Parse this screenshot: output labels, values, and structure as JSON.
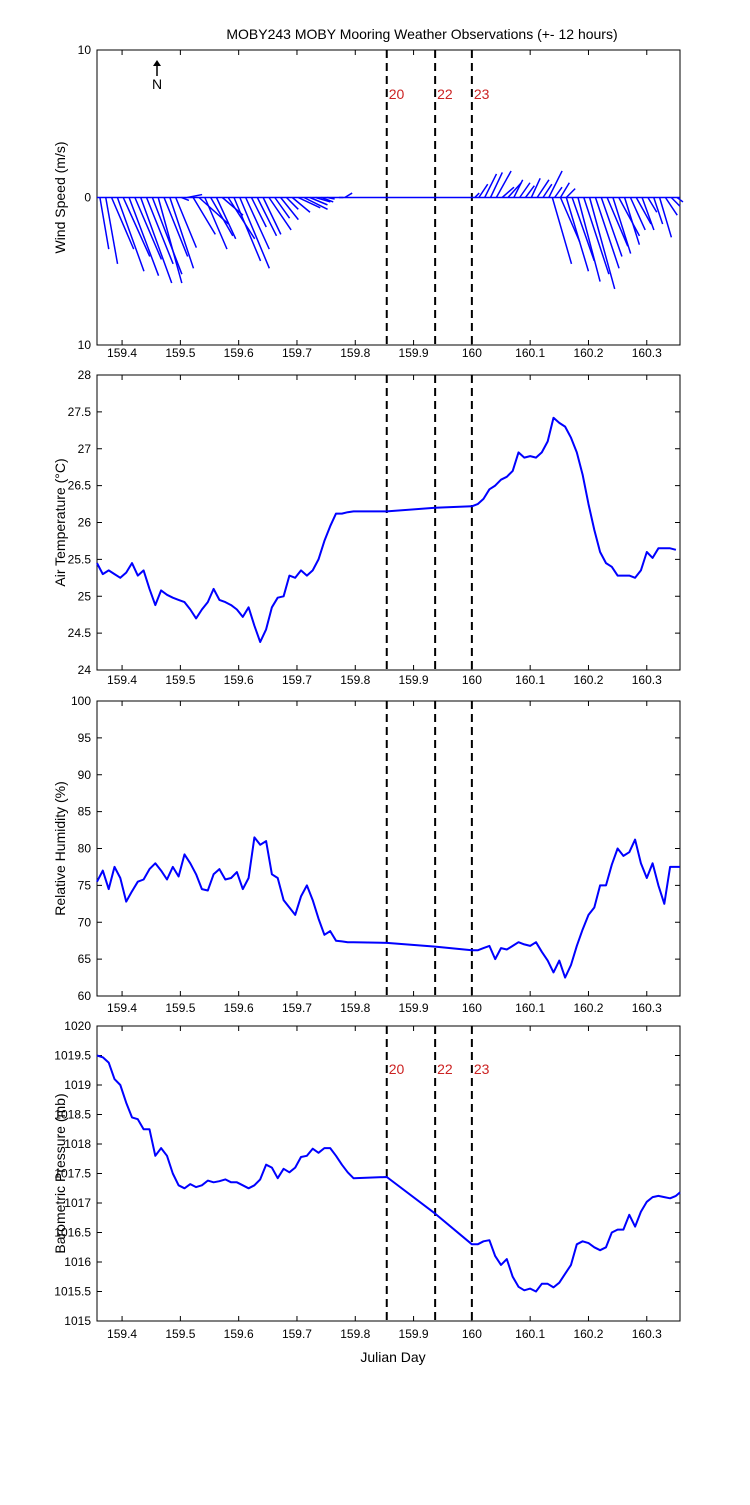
{
  "figure": {
    "title": "MOBY243 MOBY Mooring Weather Observations (+- 12 hours)",
    "xlabel": "Julian Day",
    "north_label": "N"
  },
  "colors": {
    "line": "#0000ff",
    "marker_label": "#cc2222",
    "axis": "#000000",
    "background": "#ffffff"
  },
  "chart_data": [
    {
      "type": "quiver",
      "id": "wind",
      "ylabel": "Wind Speed (m/s)",
      "xlim": [
        159.357,
        160.357
      ],
      "ylim": [
        -10,
        10
      ],
      "yticklabels": [
        {
          "v": 10,
          "t": "10"
        },
        {
          "v": 0,
          "t": "0"
        },
        {
          "v": -10,
          "t": "10"
        }
      ],
      "xticks": [
        159.4,
        159.5,
        159.6,
        159.7,
        159.8,
        159.9,
        160,
        160.1,
        160.2,
        160.3
      ],
      "vlines": [
        159.854,
        159.937,
        160.0
      ],
      "marker_labels": [
        "20",
        "22",
        "23"
      ],
      "vectors": [
        {
          "x": 159.362,
          "u": 0.6,
          "v": -3.5
        },
        {
          "x": 159.372,
          "u": 0.8,
          "v": -4.5
        },
        {
          "x": 159.382,
          "u": 1.5,
          "v": -3.5
        },
        {
          "x": 159.392,
          "u": 1.8,
          "v": -5.0
        },
        {
          "x": 159.402,
          "u": 1.8,
          "v": -4.0
        },
        {
          "x": 159.412,
          "u": 2.0,
          "v": -5.3
        },
        {
          "x": 159.422,
          "u": 1.8,
          "v": -4.2
        },
        {
          "x": 159.432,
          "u": 2.1,
          "v": -5.8
        },
        {
          "x": 159.442,
          "u": 1.8,
          "v": -4.5
        },
        {
          "x": 159.452,
          "u": 2.0,
          "v": -5.2
        },
        {
          "x": 159.462,
          "u": 1.6,
          "v": -5.8
        },
        {
          "x": 159.472,
          "u": 1.6,
          "v": -4.0
        },
        {
          "x": 159.482,
          "u": 1.6,
          "v": -4.8
        },
        {
          "x": 159.492,
          "u": 1.4,
          "v": -3.4
        },
        {
          "x": 159.502,
          "u": 0.5,
          "v": -0.2
        },
        {
          "x": 159.512,
          "u": 1.0,
          "v": 0.2
        },
        {
          "x": 159.522,
          "u": 1.5,
          "v": -2.5
        },
        {
          "x": 159.532,
          "u": 2.0,
          "v": -1.8
        },
        {
          "x": 159.542,
          "u": 1.5,
          "v": -3.5
        },
        {
          "x": 159.552,
          "u": 1.5,
          "v": -2.6
        },
        {
          "x": 159.562,
          "u": 1.3,
          "v": -2.8
        },
        {
          "x": 159.572,
          "u": 1.4,
          "v": -1.2
        },
        {
          "x": 159.582,
          "u": 1.8,
          "v": -2.8
        },
        {
          "x": 159.592,
          "u": 1.8,
          "v": -4.3
        },
        {
          "x": 159.602,
          "u": 2.0,
          "v": -4.8
        },
        {
          "x": 159.612,
          "u": 1.6,
          "v": -3.5
        },
        {
          "x": 159.622,
          "u": 1.0,
          "v": -2.0
        },
        {
          "x": 159.632,
          "u": 1.3,
          "v": -2.6
        },
        {
          "x": 159.642,
          "u": 1.2,
          "v": -2.5
        },
        {
          "x": 159.652,
          "u": 1.5,
          "v": -2.2
        },
        {
          "x": 159.662,
          "u": 1.0,
          "v": -1.4
        },
        {
          "x": 159.672,
          "u": 1.2,
          "v": -1.5
        },
        {
          "x": 159.682,
          "u": 0.8,
          "v": -0.8
        },
        {
          "x": 159.692,
          "u": 1.2,
          "v": -1.0
        },
        {
          "x": 159.702,
          "u": 1.5,
          "v": -0.7
        },
        {
          "x": 159.712,
          "u": 1.6,
          "v": -0.8
        },
        {
          "x": 159.722,
          "u": 1.2,
          "v": -0.5
        },
        {
          "x": 159.732,
          "u": 1.0,
          "v": -0.3
        },
        {
          "x": 159.742,
          "u": 0.8,
          "v": -0.3
        },
        {
          "x": 159.752,
          "u": 0.5,
          "v": -0.1
        },
        {
          "x": 159.772,
          "u": 0.3,
          "v": 0.0
        },
        {
          "x": 159.782,
          "u": 0.5,
          "v": 0.3
        },
        {
          "x": 159.854,
          "u": 0.0,
          "v": 0.0
        },
        {
          "x": 159.937,
          "u": 0.0,
          "v": 0.0
        },
        {
          "x": 160.005,
          "u": 0.3,
          "v": 0.3
        },
        {
          "x": 160.012,
          "u": 0.6,
          "v": 0.9
        },
        {
          "x": 160.022,
          "u": 0.8,
          "v": 1.6
        },
        {
          "x": 160.032,
          "u": 0.8,
          "v": 1.7
        },
        {
          "x": 160.042,
          "u": 1.0,
          "v": 1.8
        },
        {
          "x": 160.052,
          "u": 0.8,
          "v": 0.7
        },
        {
          "x": 160.062,
          "u": 0.9,
          "v": 1.0
        },
        {
          "x": 160.072,
          "u": 0.6,
          "v": 1.2
        },
        {
          "x": 160.082,
          "u": 0.7,
          "v": 1.0
        },
        {
          "x": 160.092,
          "u": 0.6,
          "v": 0.8
        },
        {
          "x": 160.102,
          "u": 0.6,
          "v": 1.3
        },
        {
          "x": 160.112,
          "u": 0.8,
          "v": 1.2
        },
        {
          "x": 160.122,
          "u": 0.6,
          "v": 0.9
        },
        {
          "x": 160.132,
          "u": 0.9,
          "v": 1.8
        },
        {
          "x": 160.142,
          "u": 0.5,
          "v": 0.7
        },
        {
          "x": 160.152,
          "u": 0.6,
          "v": 1.0
        },
        {
          "x": 160.162,
          "u": 0.6,
          "v": 0.6
        },
        {
          "x": 160.138,
          "u": 1.3,
          "v": -4.5
        },
        {
          "x": 160.152,
          "u": 1.3,
          "v": -3.0
        },
        {
          "x": 160.162,
          "u": 1.5,
          "v": -5.0
        },
        {
          "x": 160.172,
          "u": 1.5,
          "v": -4.3
        },
        {
          "x": 160.182,
          "u": 1.5,
          "v": -5.7
        },
        {
          "x": 160.192,
          "u": 1.7,
          "v": -5.2
        },
        {
          "x": 160.202,
          "u": 1.7,
          "v": -6.2
        },
        {
          "x": 160.212,
          "u": 1.6,
          "v": -4.8
        },
        {
          "x": 160.222,
          "u": 1.4,
          "v": -4.0
        },
        {
          "x": 160.232,
          "u": 1.4,
          "v": -3.3
        },
        {
          "x": 160.242,
          "u": 1.2,
          "v": -3.8
        },
        {
          "x": 160.252,
          "u": 1.4,
          "v": -2.6
        },
        {
          "x": 160.262,
          "u": 1.0,
          "v": -3.2
        },
        {
          "x": 160.272,
          "u": 1.0,
          "v": -2.2
        },
        {
          "x": 160.282,
          "u": 1.0,
          "v": -1.8
        },
        {
          "x": 160.292,
          "u": 0.8,
          "v": -2.2
        },
        {
          "x": 160.302,
          "u": 0.6,
          "v": -1.0
        },
        {
          "x": 160.312,
          "u": 0.6,
          "v": -1.8
        },
        {
          "x": 160.322,
          "u": 0.8,
          "v": -2.7
        },
        {
          "x": 160.332,
          "u": 0.8,
          "v": -1.2
        },
        {
          "x": 160.342,
          "u": 0.6,
          "v": -0.6
        },
        {
          "x": 160.352,
          "u": 0.4,
          "v": -0.3
        }
      ]
    },
    {
      "type": "line",
      "id": "air-temperature",
      "ylabel": "Air Temperature (°C)",
      "xlim": [
        159.357,
        160.357
      ],
      "ylim": [
        24,
        28
      ],
      "yticklabels": [
        {
          "v": 28,
          "t": "28"
        },
        {
          "v": 27.5,
          "t": "27.5"
        },
        {
          "v": 27,
          "t": "27"
        },
        {
          "v": 26.5,
          "t": "26.5"
        },
        {
          "v": 26,
          "t": "26"
        },
        {
          "v": 25.5,
          "t": "25.5"
        },
        {
          "v": 25,
          "t": "25"
        },
        {
          "v": 24.5,
          "t": "24.5"
        },
        {
          "v": 24,
          "t": "24"
        }
      ],
      "xticks": [
        159.4,
        159.5,
        159.6,
        159.7,
        159.8,
        159.9,
        160,
        160.1,
        160.2,
        160.3
      ],
      "vlines": [
        159.854,
        159.937,
        160.0
      ],
      "marker_labels": [],
      "x": [
        159.357,
        159.367,
        159.377,
        159.387,
        159.397,
        159.407,
        159.417,
        159.427,
        159.437,
        159.447,
        159.457,
        159.467,
        159.477,
        159.487,
        159.497,
        159.507,
        159.517,
        159.527,
        159.537,
        159.547,
        159.557,
        159.567,
        159.577,
        159.587,
        159.597,
        159.607,
        159.617,
        159.627,
        159.637,
        159.647,
        159.657,
        159.667,
        159.677,
        159.687,
        159.697,
        159.707,
        159.717,
        159.727,
        159.737,
        159.747,
        159.757,
        159.767,
        159.777,
        159.787,
        159.797,
        159.854,
        159.937,
        160.0,
        160.01,
        160.02,
        160.03,
        160.04,
        160.05,
        160.06,
        160.07,
        160.08,
        160.09,
        160.1,
        160.11,
        160.12,
        160.13,
        160.14,
        160.15,
        160.16,
        160.17,
        160.18,
        160.19,
        160.2,
        160.21,
        160.22,
        160.23,
        160.24,
        160.25,
        160.26,
        160.27,
        160.28,
        160.29,
        160.3,
        160.31,
        160.32,
        160.33,
        160.34,
        160.35
      ],
      "y": [
        25.45,
        25.3,
        25.35,
        25.3,
        25.25,
        25.32,
        25.45,
        25.28,
        25.35,
        25.1,
        24.88,
        25.08,
        25.02,
        24.98,
        24.95,
        24.92,
        24.82,
        24.7,
        24.82,
        24.92,
        25.1,
        24.95,
        24.92,
        24.88,
        24.82,
        24.72,
        24.85,
        24.6,
        24.38,
        24.55,
        24.85,
        24.98,
        25.0,
        25.28,
        25.25,
        25.35,
        25.28,
        25.35,
        25.5,
        25.75,
        25.95,
        26.12,
        26.12,
        26.14,
        26.15,
        26.15,
        26.2,
        26.22,
        26.25,
        26.32,
        26.45,
        26.5,
        26.58,
        26.62,
        26.7,
        26.95,
        26.88,
        26.9,
        26.88,
        26.95,
        27.1,
        27.42,
        27.35,
        27.3,
        27.15,
        26.95,
        26.65,
        26.25,
        25.9,
        25.6,
        25.45,
        25.4,
        25.28,
        25.28,
        25.28,
        25.25,
        25.35,
        25.6,
        25.52,
        25.65,
        25.65,
        25.65,
        25.63
      ]
    },
    {
      "type": "line",
      "id": "relative-humidity",
      "ylabel": "Relative Humidity (%)",
      "xlim": [
        159.357,
        160.357
      ],
      "ylim": [
        60,
        100
      ],
      "yticklabels": [
        {
          "v": 100,
          "t": "100"
        },
        {
          "v": 95,
          "t": "95"
        },
        {
          "v": 90,
          "t": "90"
        },
        {
          "v": 85,
          "t": "85"
        },
        {
          "v": 80,
          "t": "80"
        },
        {
          "v": 75,
          "t": "75"
        },
        {
          "v": 70,
          "t": "70"
        },
        {
          "v": 65,
          "t": "65"
        },
        {
          "v": 60,
          "t": "60"
        }
      ],
      "xticks": [
        159.4,
        159.5,
        159.6,
        159.7,
        159.8,
        159.9,
        160,
        160.1,
        160.2,
        160.3
      ],
      "vlines": [
        159.854,
        159.937,
        160.0
      ],
      "marker_labels": [],
      "x": [
        159.357,
        159.367,
        159.377,
        159.387,
        159.397,
        159.407,
        159.417,
        159.427,
        159.437,
        159.447,
        159.457,
        159.467,
        159.477,
        159.487,
        159.497,
        159.507,
        159.517,
        159.527,
        159.537,
        159.547,
        159.557,
        159.567,
        159.577,
        159.587,
        159.597,
        159.607,
        159.617,
        159.627,
        159.637,
        159.647,
        159.657,
        159.667,
        159.677,
        159.687,
        159.697,
        159.707,
        159.717,
        159.727,
        159.737,
        159.747,
        159.757,
        159.767,
        159.777,
        159.787,
        159.797,
        159.854,
        159.937,
        160.0,
        160.01,
        160.02,
        160.03,
        160.04,
        160.05,
        160.06,
        160.07,
        160.08,
        160.09,
        160.1,
        160.11,
        160.12,
        160.13,
        160.14,
        160.15,
        160.16,
        160.17,
        160.18,
        160.19,
        160.2,
        160.21,
        160.22,
        160.23,
        160.24,
        160.25,
        160.26,
        160.27,
        160.28,
        160.29,
        160.3,
        160.31,
        160.32,
        160.33,
        160.34,
        160.35,
        160.357
      ],
      "y": [
        75.5,
        77.0,
        74.5,
        77.5,
        76.0,
        72.8,
        74.2,
        75.5,
        75.8,
        77.2,
        78.0,
        77.0,
        75.8,
        77.5,
        76.2,
        79.2,
        78.0,
        76.5,
        74.5,
        74.3,
        76.5,
        77.2,
        75.8,
        76.0,
        76.8,
        74.5,
        76.0,
        81.5,
        80.5,
        81.0,
        76.5,
        76.0,
        73.0,
        72.0,
        71.0,
        73.5,
        75.0,
        73.0,
        70.5,
        68.3,
        68.8,
        67.5,
        67.4,
        67.3,
        67.3,
        67.2,
        66.7,
        66.2,
        66.2,
        66.5,
        66.8,
        65.0,
        66.5,
        66.3,
        66.8,
        67.3,
        67.0,
        66.8,
        67.3,
        66.0,
        64.8,
        63.2,
        64.8,
        62.5,
        64.2,
        66.8,
        69.0,
        71.0,
        72.0,
        75.0,
        75.0,
        77.8,
        80.0,
        79.0,
        79.5,
        81.2,
        78.0,
        76.0,
        78.0,
        75.0,
        72.5,
        77.5,
        77.5,
        77.5
      ]
    },
    {
      "type": "line",
      "id": "barometric-pressure",
      "ylabel": "Barometric Pressure (mb)",
      "xlim": [
        159.357,
        160.357
      ],
      "ylim": [
        1015,
        1020
      ],
      "yticklabels": [
        {
          "v": 1020,
          "t": "1020"
        },
        {
          "v": 1019.5,
          "t": "1019.5"
        },
        {
          "v": 1019,
          "t": "1019"
        },
        {
          "v": 1018.5,
          "t": "1018.5"
        },
        {
          "v": 1018,
          "t": "1018"
        },
        {
          "v": 1017.5,
          "t": "1017.5"
        },
        {
          "v": 1017,
          "t": "1017"
        },
        {
          "v": 1016.5,
          "t": "1016.5"
        },
        {
          "v": 1016,
          "t": "1016"
        },
        {
          "v": 1015.5,
          "t": "1015.5"
        },
        {
          "v": 1015,
          "t": "1015"
        }
      ],
      "xticks": [
        159.4,
        159.5,
        159.6,
        159.7,
        159.8,
        159.9,
        160,
        160.1,
        160.2,
        160.3
      ],
      "vlines": [
        159.854,
        159.937,
        160.0
      ],
      "marker_labels": [
        "20",
        "22",
        "23"
      ],
      "x": [
        159.357,
        159.367,
        159.377,
        159.387,
        159.397,
        159.407,
        159.417,
        159.427,
        159.437,
        159.447,
        159.457,
        159.467,
        159.477,
        159.487,
        159.497,
        159.507,
        159.517,
        159.527,
        159.537,
        159.547,
        159.557,
        159.567,
        159.577,
        159.587,
        159.597,
        159.607,
        159.617,
        159.627,
        159.637,
        159.647,
        159.657,
        159.667,
        159.677,
        159.687,
        159.697,
        159.707,
        159.717,
        159.727,
        159.737,
        159.747,
        159.757,
        159.767,
        159.777,
        159.787,
        159.797,
        159.854,
        159.937,
        160.0,
        160.01,
        160.02,
        160.03,
        160.04,
        160.05,
        160.06,
        160.07,
        160.08,
        160.09,
        160.1,
        160.11,
        160.12,
        160.13,
        160.14,
        160.15,
        160.16,
        160.17,
        160.18,
        160.19,
        160.2,
        160.21,
        160.22,
        160.23,
        160.24,
        160.25,
        160.26,
        160.27,
        160.28,
        160.29,
        160.3,
        160.31,
        160.32,
        160.33,
        160.34,
        160.35,
        160.357
      ],
      "y": [
        1019.5,
        1019.47,
        1019.38,
        1019.1,
        1019.0,
        1018.7,
        1018.45,
        1018.42,
        1018.25,
        1018.25,
        1017.8,
        1017.93,
        1017.8,
        1017.5,
        1017.3,
        1017.25,
        1017.32,
        1017.27,
        1017.3,
        1017.38,
        1017.35,
        1017.37,
        1017.4,
        1017.35,
        1017.35,
        1017.3,
        1017.25,
        1017.3,
        1017.4,
        1017.65,
        1017.6,
        1017.42,
        1017.58,
        1017.52,
        1017.6,
        1017.78,
        1017.8,
        1017.92,
        1017.85,
        1017.93,
        1017.93,
        1017.8,
        1017.65,
        1017.52,
        1017.42,
        1017.44,
        1016.82,
        1016.3,
        1016.3,
        1016.35,
        1016.37,
        1016.1,
        1015.95,
        1016.05,
        1015.75,
        1015.58,
        1015.52,
        1015.55,
        1015.5,
        1015.63,
        1015.63,
        1015.57,
        1015.65,
        1015.8,
        1015.95,
        1016.3,
        1016.35,
        1016.32,
        1016.25,
        1016.2,
        1016.25,
        1016.5,
        1016.55,
        1016.55,
        1016.8,
        1016.6,
        1016.85,
        1017.02,
        1017.1,
        1017.12,
        1017.1,
        1017.08,
        1017.12,
        1017.18
      ]
    }
  ]
}
